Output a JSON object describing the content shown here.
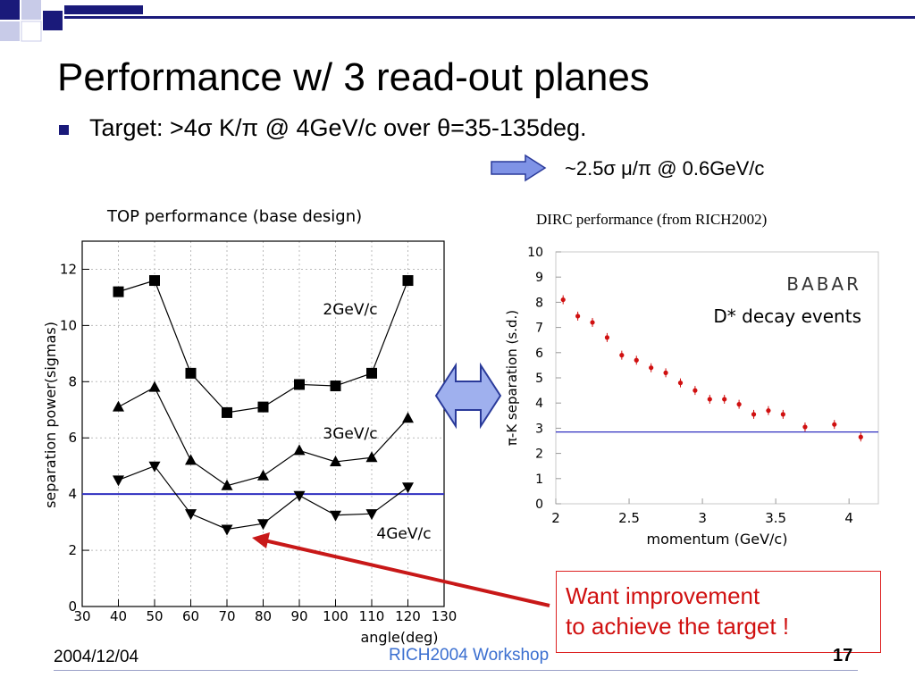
{
  "slide": {
    "title": "Performance w/ 3 read-out planes",
    "bullet": "Target: >4σ K/π @ 4GeV/c over θ=35-135deg.",
    "sub_point": "~2.5σ  μ/π @ 0.6GeV/c",
    "callout": [
      "Want improvement",
      "to achieve the target !"
    ],
    "footer": {
      "date": "2004/12/04",
      "center": "RICH2004 Workshop",
      "page": "17"
    },
    "colors": {
      "title_blue": "#1a1a7a",
      "logo_blue": "#1a1a7a",
      "arrow_blue": "#7f93e6",
      "callout_red": "#d01010",
      "target_line": "#3030c0",
      "footer_link": "#3b6fd0"
    },
    "icons": [
      "logo-squares-icon",
      "right-arrow-icon",
      "double-arrow-icon",
      "red-pointer-arrow-icon"
    ]
  },
  "chart_data": [
    {
      "type": "line",
      "title": "TOP performance (base design)",
      "xlabel": "angle(deg)",
      "ylabel": "separation power(sigmas)",
      "xlim": [
        30,
        130
      ],
      "ylim": [
        0,
        13
      ],
      "xticks": [
        30,
        40,
        50,
        60,
        70,
        80,
        90,
        100,
        110,
        120,
        130
      ],
      "yticks": [
        0,
        2,
        4,
        6,
        8,
        10,
        12
      ],
      "grid": true,
      "x": [
        40,
        50,
        60,
        70,
        80,
        90,
        100,
        110,
        120
      ],
      "series": [
        {
          "name": "2GeV/c",
          "marker": "square",
          "values": [
            11.2,
            11.6,
            8.3,
            6.9,
            7.1,
            7.9,
            7.85,
            8.3,
            11.6
          ]
        },
        {
          "name": "3GeV/c",
          "marker": "triangle-up",
          "values": [
            7.1,
            7.8,
            5.2,
            4.3,
            4.65,
            5.55,
            5.15,
            5.3,
            6.7
          ]
        },
        {
          "name": "4GeV/c",
          "marker": "triangle-down",
          "values": [
            4.5,
            5.0,
            3.3,
            2.75,
            2.95,
            3.95,
            3.25,
            3.3,
            4.25
          ]
        }
      ],
      "reference_line": 4
    },
    {
      "type": "scatter",
      "title": "DIRC performance (from RICH2002)",
      "xlabel": "momentum (GeV/c)",
      "ylabel": "π-K separation (s.d.)",
      "annotations": [
        "BABAR",
        "D* decay events"
      ],
      "xlim": [
        2,
        4.2
      ],
      "ylim": [
        0,
        10
      ],
      "xticks": [
        2,
        2.5,
        3,
        3.5,
        4
      ],
      "yticks": [
        0,
        1,
        2,
        3,
        4,
        5,
        6,
        7,
        8,
        9,
        10
      ],
      "x": [
        2.05,
        2.15,
        2.25,
        2.35,
        2.45,
        2.55,
        2.65,
        2.75,
        2.85,
        2.95,
        3.05,
        3.15,
        3.25,
        3.35,
        3.45,
        3.55,
        3.7,
        3.9,
        4.08
      ],
      "values": [
        8.1,
        7.45,
        7.2,
        6.6,
        5.9,
        5.7,
        5.4,
        5.2,
        4.8,
        4.5,
        4.15,
        4.15,
        3.95,
        3.55,
        3.7,
        3.55,
        3.05,
        3.15,
        2.65
      ],
      "reference_line": 2.85
    }
  ]
}
